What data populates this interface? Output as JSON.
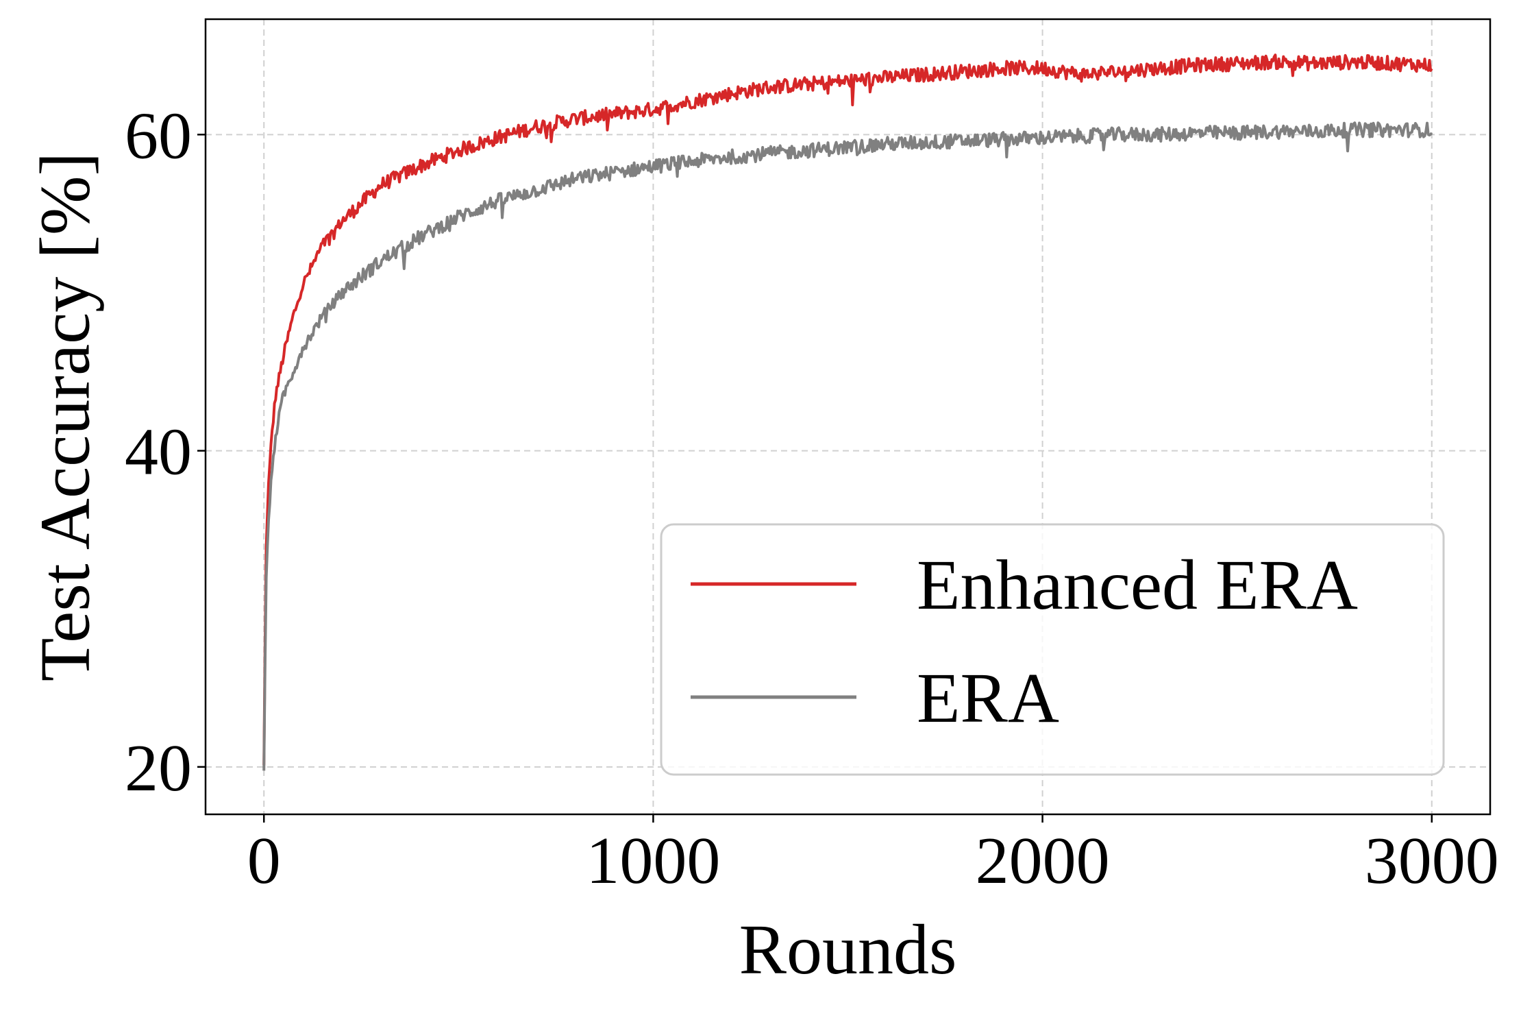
{
  "chart_data": {
    "type": "line",
    "title": "",
    "xlabel": "Rounds",
    "ylabel": "Test Accuracy [%]",
    "xlim": [
      -150,
      3150
    ],
    "ylim": [
      17,
      67.3
    ],
    "xticks": [
      0,
      1000,
      2000,
      3000
    ],
    "xtick_labels": [
      "0",
      "1000",
      "2000",
      "3000"
    ],
    "yticks": [
      20,
      40,
      60
    ],
    "ytick_labels": [
      "20",
      "40",
      "60"
    ],
    "grid": true,
    "legend_position": "lower-right",
    "series": [
      {
        "name": "Enhanced ERA",
        "color": "#d62728",
        "x": [
          0,
          5,
          10,
          20,
          30,
          50,
          75,
          100,
          150,
          200,
          300,
          400,
          500,
          600,
          700,
          800,
          900,
          1000,
          1100,
          1200,
          1300,
          1400,
          1500,
          1600,
          1700,
          1800,
          1900,
          2000,
          2100,
          2200,
          2300,
          2400,
          2500,
          2600,
          2700,
          2800,
          2900,
          3000
        ],
        "y": [
          20,
          33,
          37,
          41,
          43.5,
          46,
          48.5,
          50.5,
          53,
          54.5,
          56.8,
          58,
          59,
          59.8,
          60.5,
          61,
          61.3,
          61.6,
          62.1,
          62.6,
          63,
          63.2,
          63.4,
          63.6,
          63.8,
          64,
          64.2,
          64.2,
          63.8,
          64,
          64.2,
          64.4,
          64.5,
          64.6,
          64.5,
          64.6,
          64.5,
          64.4
        ]
      },
      {
        "name": "ERA",
        "color": "#808080",
        "x": [
          0,
          5,
          10,
          20,
          30,
          50,
          75,
          100,
          150,
          200,
          300,
          400,
          500,
          600,
          700,
          800,
          900,
          1000,
          1100,
          1200,
          1300,
          1400,
          1500,
          1600,
          1700,
          1800,
          1900,
          2000,
          2100,
          2200,
          2300,
          2400,
          2500,
          2600,
          2700,
          2800,
          2900,
          3000
        ],
        "y": [
          19.5,
          31,
          35,
          38.5,
          41,
          43.5,
          45,
          46.5,
          48.5,
          50,
          52,
          53.5,
          54.8,
          55.8,
          56.5,
          57.2,
          57.6,
          58,
          58.3,
          58.6,
          58.8,
          59,
          59.2,
          59.4,
          59.5,
          59.6,
          59.7,
          59.8,
          59.9,
          60,
          60,
          60.1,
          60.1,
          60.2,
          60.2,
          60.3,
          60.3,
          60.3
        ]
      }
    ]
  }
}
